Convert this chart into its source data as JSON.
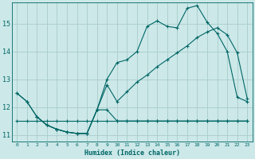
{
  "xlabel": "Humidex (Indice chaleur)",
  "bg_color": "#cce8e8",
  "grid_color": "#aacccc",
  "line_color": "#006666",
  "xlim": [
    -0.5,
    23.5
  ],
  "ylim": [
    10.75,
    15.75
  ],
  "yticks": [
    11,
    12,
    13,
    14,
    15
  ],
  "xticks": [
    0,
    1,
    2,
    3,
    4,
    5,
    6,
    7,
    8,
    9,
    10,
    11,
    12,
    13,
    14,
    15,
    16,
    17,
    18,
    19,
    20,
    21,
    22,
    23
  ],
  "line1_x": [
    0,
    1,
    2,
    3,
    4,
    5,
    6,
    7,
    8,
    9,
    10,
    11,
    12,
    13,
    14,
    15,
    16,
    17,
    18,
    19,
    20,
    21,
    22,
    23
  ],
  "line1_y": [
    11.5,
    11.5,
    11.5,
    11.5,
    11.5,
    11.5,
    11.5,
    11.5,
    11.5,
    11.5,
    11.5,
    11.5,
    11.5,
    11.5,
    11.5,
    11.5,
    11.5,
    11.5,
    11.5,
    11.5,
    11.5,
    11.5,
    11.5,
    11.5
  ],
  "line2_x": [
    0,
    1,
    2,
    3,
    4,
    5,
    6,
    7,
    8,
    9,
    10,
    11,
    12,
    13,
    14,
    15,
    16,
    17,
    18,
    19,
    20,
    21,
    22,
    23
  ],
  "line2_y": [
    12.5,
    12.2,
    11.65,
    11.35,
    11.2,
    11.1,
    11.05,
    11.05,
    11.9,
    11.9,
    11.5,
    11.5,
    11.5,
    11.5,
    11.5,
    11.5,
    11.5,
    11.5,
    11.5,
    11.5,
    11.5,
    11.5,
    11.5,
    11.5
  ],
  "line3_x": [
    0,
    1,
    2,
    3,
    4,
    5,
    6,
    7,
    8,
    9,
    10,
    11,
    12,
    13,
    14,
    15,
    16,
    17,
    18,
    19,
    20,
    21,
    22,
    23
  ],
  "line3_y": [
    12.5,
    12.2,
    11.65,
    11.35,
    11.2,
    11.1,
    11.05,
    11.05,
    11.9,
    13.0,
    13.6,
    13.7,
    14.0,
    14.9,
    15.1,
    14.9,
    14.85,
    15.55,
    15.65,
    15.05,
    14.65,
    14.0,
    12.35,
    12.2
  ],
  "line4_x": [
    2,
    3,
    4,
    5,
    6,
    7,
    8,
    9,
    10,
    11,
    12,
    13,
    14,
    15,
    16,
    17,
    18,
    19,
    20,
    21,
    22,
    23
  ],
  "line4_y": [
    11.65,
    11.35,
    11.2,
    11.1,
    11.05,
    11.05,
    11.9,
    12.8,
    12.2,
    12.55,
    12.9,
    13.15,
    13.45,
    13.7,
    13.95,
    14.2,
    14.5,
    14.7,
    14.85,
    14.6,
    13.95,
    12.3
  ]
}
